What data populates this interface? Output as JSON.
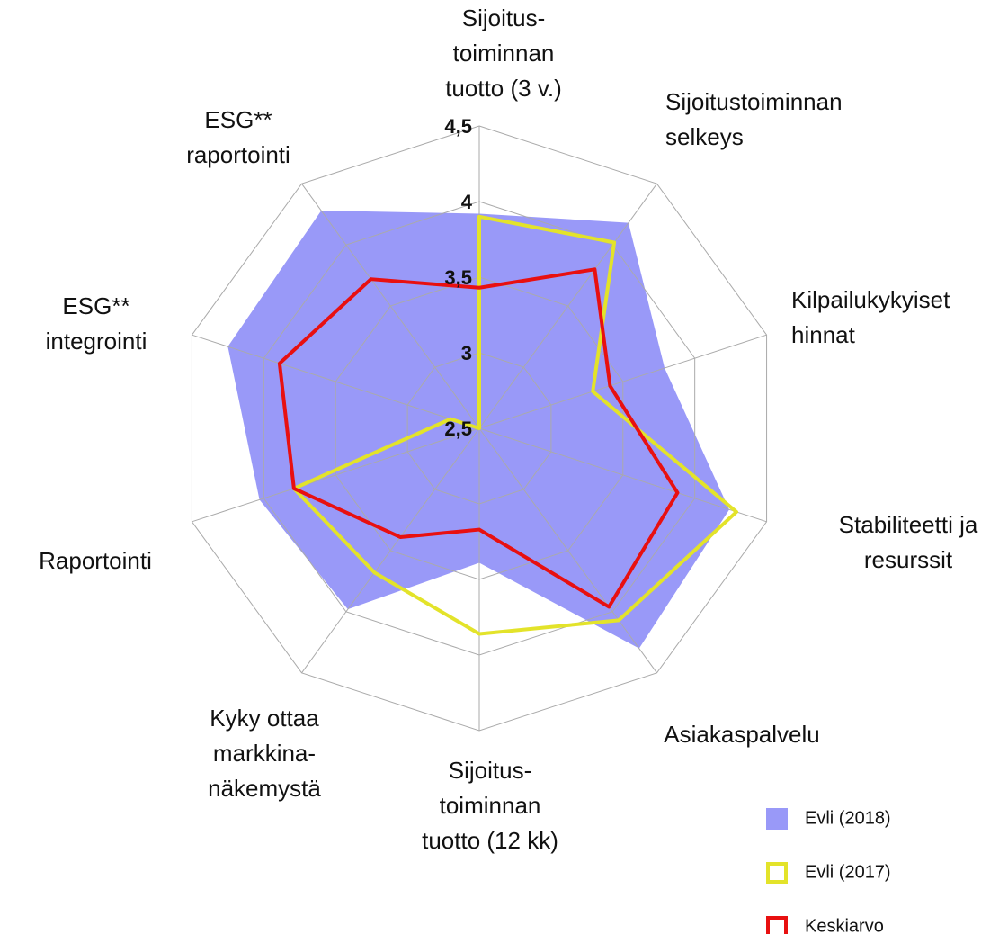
{
  "chart_data": {
    "type": "radar",
    "categories": [
      [
        "Sijoitus-",
        "toiminnan",
        "tuotto (3 v.)"
      ],
      [
        "Sijoitustoiminnan",
        "selkeys"
      ],
      [
        "Kilpailukykyiset",
        "hinnat"
      ],
      [
        "Stabiliteetti ja",
        "resurssit"
      ],
      [
        "Asiakaspalvelu"
      ],
      [
        "Sijoitus-",
        "toiminnan",
        "tuotto (12 kk)"
      ],
      [
        "Kyky ottaa",
        "markkina-",
        "näkemystä"
      ],
      [
        "Raportointi"
      ],
      [
        "ESG**",
        "integrointi"
      ],
      [
        "ESG**",
        "raportointi"
      ]
    ],
    "rlim": [
      2.5,
      4.5
    ],
    "rticks": [
      2.5,
      3,
      3.5,
      4,
      4.5
    ],
    "rtick_labels": [
      "2,5",
      "3",
      "3,5",
      "4",
      "4,5"
    ],
    "series": [
      {
        "name": "Evli (2018)",
        "color": "#9999f8",
        "fill": true,
        "values": [
          3.92,
          4.18,
          3.79,
          4.24,
          4.3,
          3.39,
          3.98,
          4.03,
          4.25,
          4.28
        ]
      },
      {
        "name": "Evli (2017)",
        "color": "#e3e32a",
        "fill": false,
        "values": [
          3.9,
          4.02,
          3.29,
          4.29,
          4.07,
          3.86,
          3.68,
          3.79,
          2.7,
          2.5
        ]
      },
      {
        "name": "Keskiarvo",
        "color": "#e81010",
        "fill": false,
        "values": [
          3.43,
          3.8,
          3.41,
          3.88,
          3.96,
          3.17,
          3.39,
          3.79,
          3.89,
          3.72
        ]
      }
    ]
  }
}
